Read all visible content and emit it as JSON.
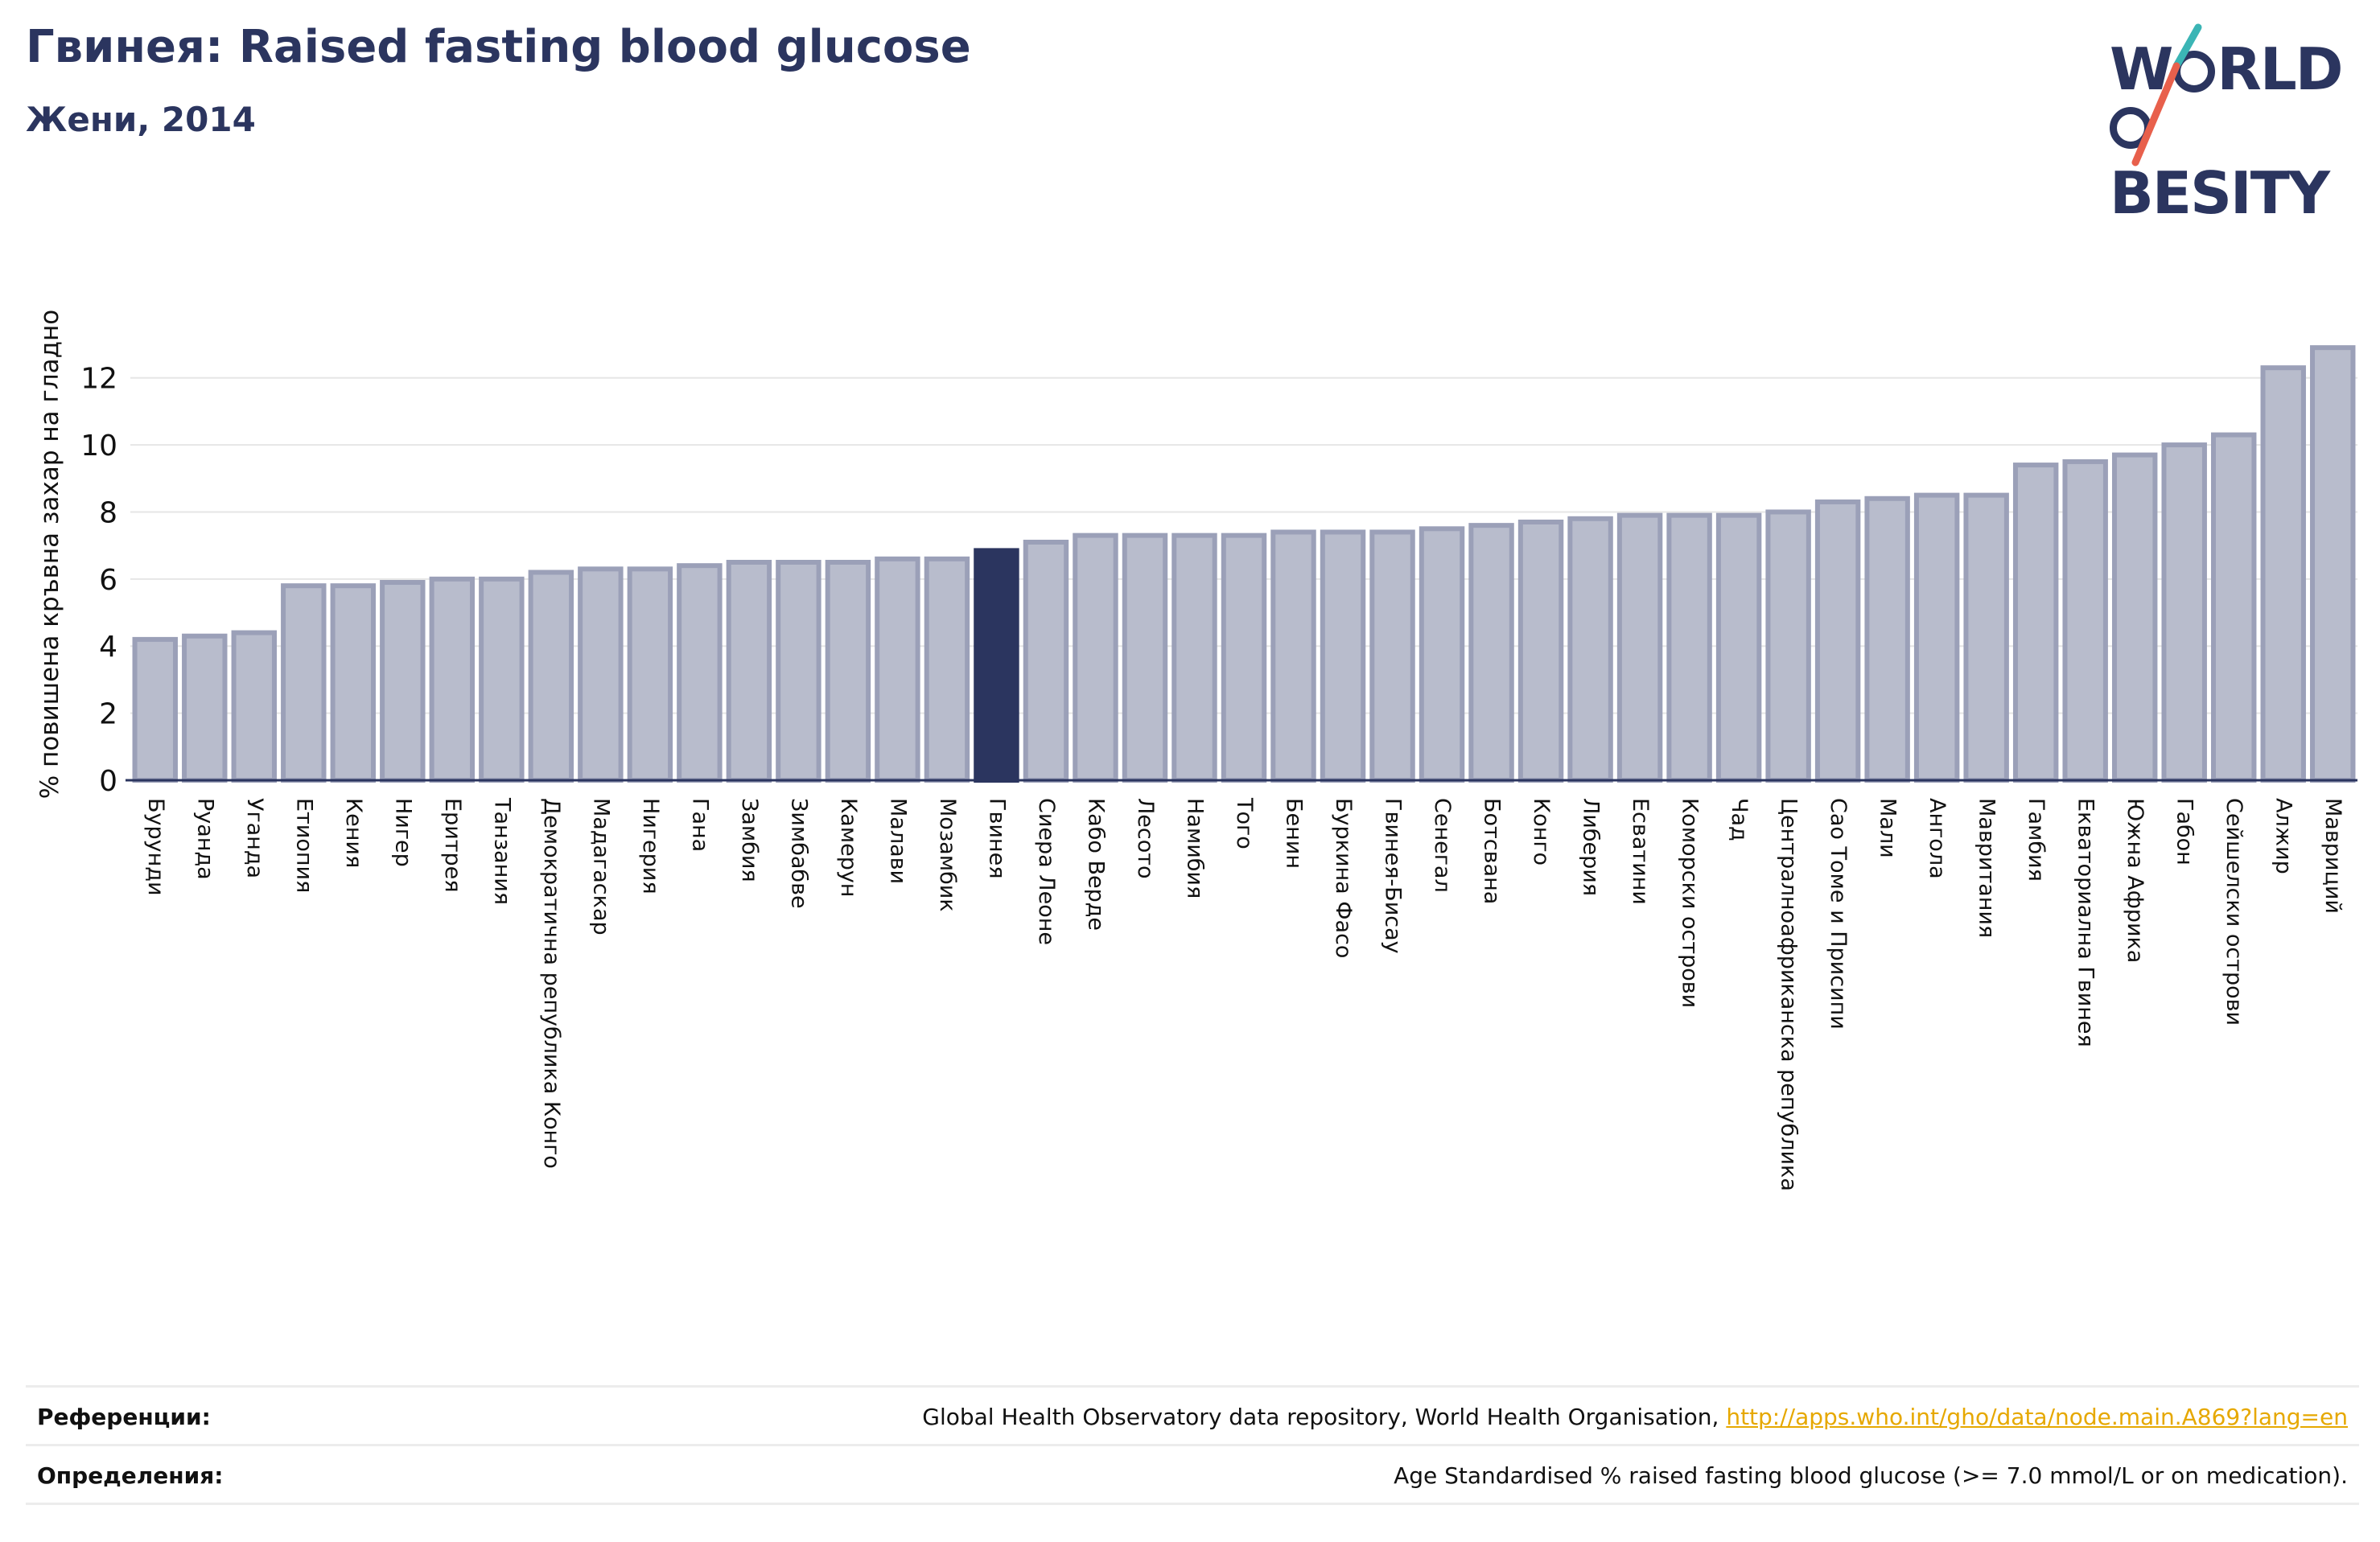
{
  "header": {
    "title": "Гвинея: Raised fasting blood glucose",
    "subtitle": "Жени, 2014"
  },
  "logo": {
    "line1": "W",
    "line1b": "RLD",
    "line2": "BESITY",
    "colors": {
      "text": "#2b355f",
      "slash_top": "#3bb5b5",
      "slash_bottom": "#e8604c"
    }
  },
  "chart_data": {
    "type": "bar",
    "ylabel": "% повишена кръвна захар на гладно",
    "ylim": [
      0,
      13
    ],
    "yticks": [
      0,
      2,
      4,
      6,
      8,
      10,
      12
    ],
    "grid": true,
    "highlight": "Гвинея",
    "colors": {
      "bar": "#b8bccc",
      "bar_border": "#9ba0b8",
      "highlight": "#2b355f"
    },
    "categories": [
      "Бурунди",
      "Руанда",
      "Уганда",
      "Етиопия",
      "Кения",
      "Нигер",
      "Еритрея",
      "Танзания",
      "Демократична република Конго",
      "Мадагаскар",
      "Нигерия",
      "Гана",
      "Замбия",
      "Зимбабве",
      "Камерун",
      "Малави",
      "Мозамбик",
      "Гвинея",
      "Сиера Леоне",
      "Кабо Верде",
      "Лесото",
      "Намибия",
      "Того",
      "Бенин",
      "Буркина Фасо",
      "Гвинея-Бисау",
      "Сенегал",
      "Ботсвана",
      "Конго",
      "Либерия",
      "Есватини",
      "Коморски острови",
      "Чад",
      "Централноафриканска република",
      "Сао Томе и Присипи",
      "Мали",
      "Ангола",
      "Мавритания",
      "Гамбия",
      "Екваториална Гвинея",
      "Южна Африка",
      "Габон",
      "Сейшелски острови",
      "Алжир",
      "Мавриций"
    ],
    "values": [
      4.2,
      4.3,
      4.4,
      5.8,
      5.8,
      5.9,
      6.0,
      6.0,
      6.2,
      6.3,
      6.3,
      6.4,
      6.5,
      6.5,
      6.5,
      6.6,
      6.6,
      6.85,
      7.1,
      7.3,
      7.3,
      7.3,
      7.3,
      7.4,
      7.4,
      7.4,
      7.5,
      7.6,
      7.7,
      7.8,
      7.9,
      7.9,
      7.9,
      8.0,
      8.3,
      8.4,
      8.5,
      8.5,
      9.4,
      9.5,
      9.7,
      10.0,
      10.3,
      12.3,
      12.9
    ]
  },
  "references": {
    "ref_label": "Референции:",
    "ref_text": "Global Health Observatory data repository, World Health Organisation, ",
    "ref_link": "http://apps.who.int/gho/data/node.main.A869?lang=en",
    "def_label": "Определения:",
    "def_text": "Age Standardised % raised fasting blood glucose (>= 7.0 mmol/L or on medication)."
  }
}
